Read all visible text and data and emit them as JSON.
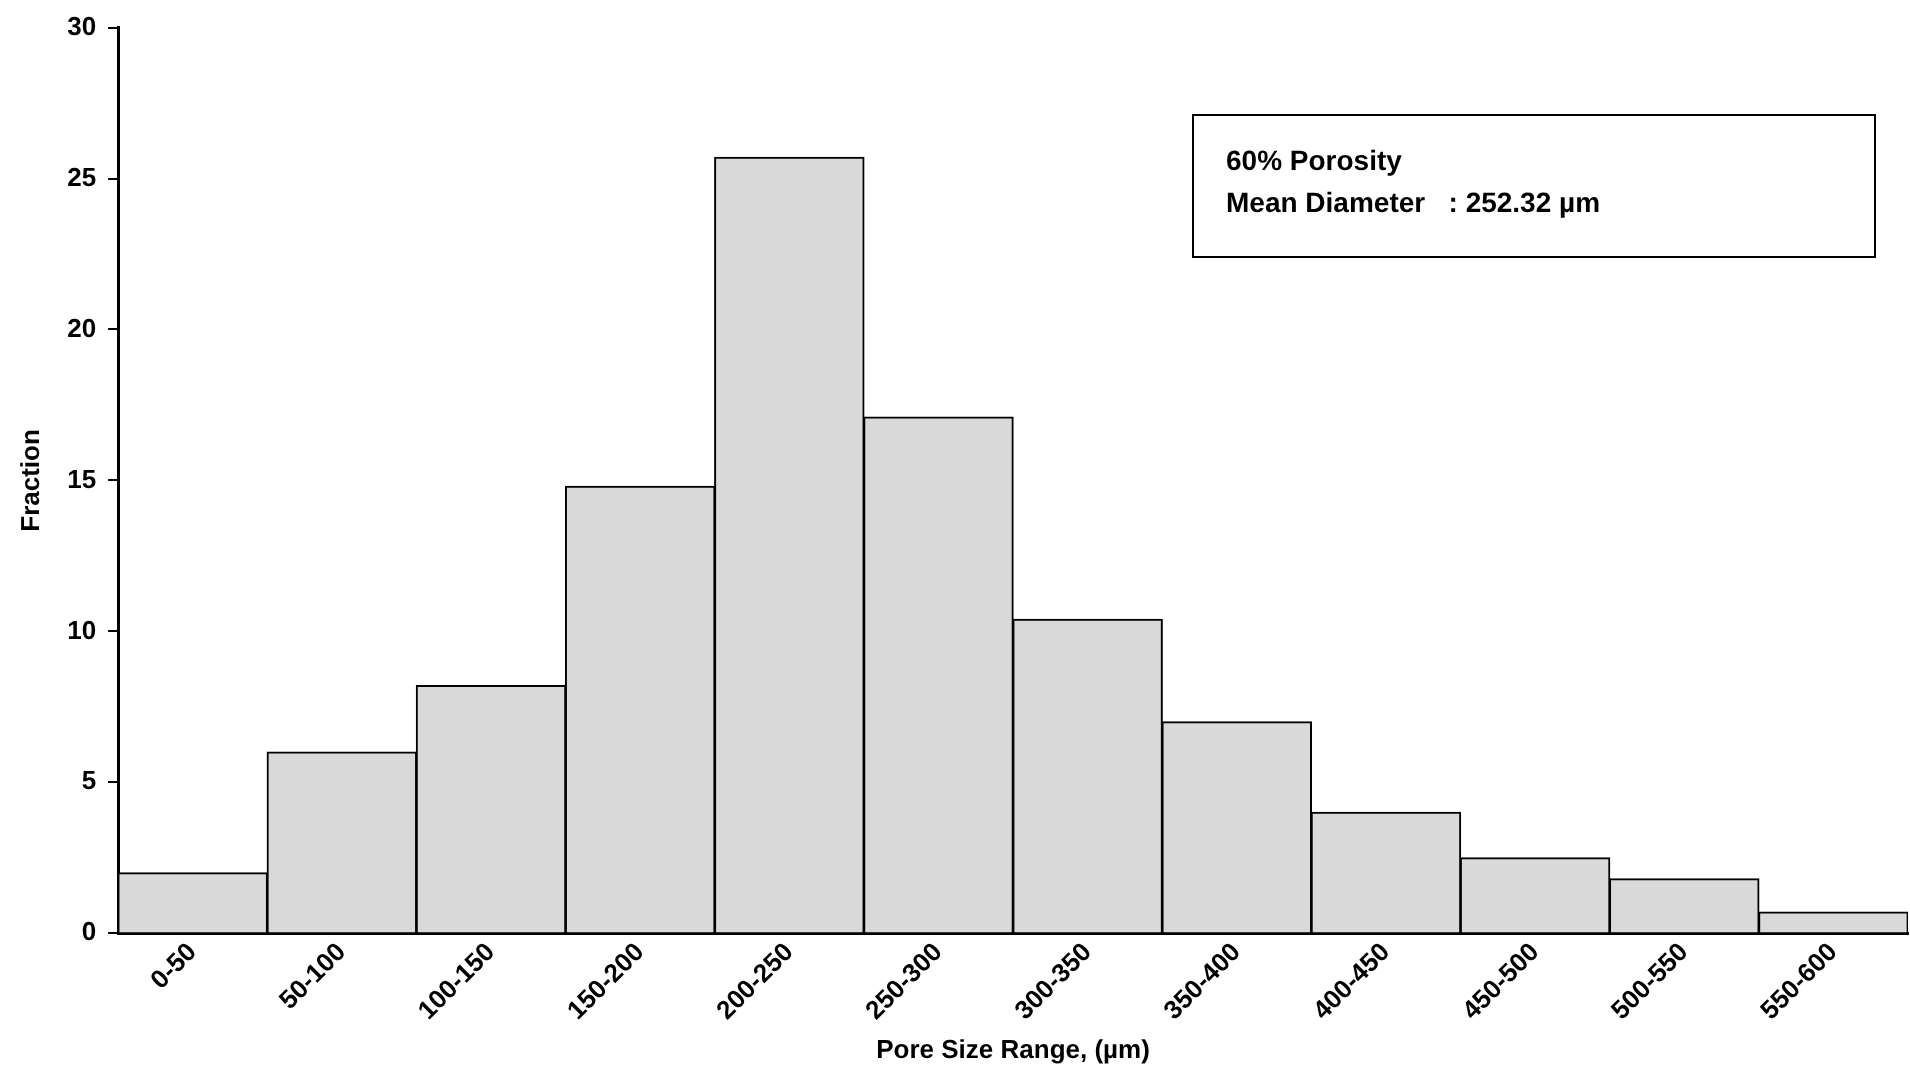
{
  "chart_data": {
    "type": "bar",
    "xlabel": "Pore Size Range, (µm)",
    "ylabel": "Fraction",
    "categories": [
      "0-50",
      "50-100",
      "100-150",
      "150-200",
      "200-250",
      "250-300",
      "300-350",
      "350-400",
      "400-450",
      "450-500",
      "500-550",
      "550-600"
    ],
    "values": [
      2.0,
      6.0,
      8.2,
      14.8,
      25.7,
      17.1,
      10.4,
      7.0,
      4.0,
      2.5,
      1.8,
      0.7
    ],
    "color": "#d9d9d9",
    "ylim": [
      0,
      30
    ],
    "yticks": [
      0,
      5,
      10,
      15,
      20,
      25,
      30
    ],
    "grid": false,
    "legend": false,
    "annotations": [
      "60% Porosity",
      "Mean Diameter   : 252.32 µm"
    ]
  }
}
